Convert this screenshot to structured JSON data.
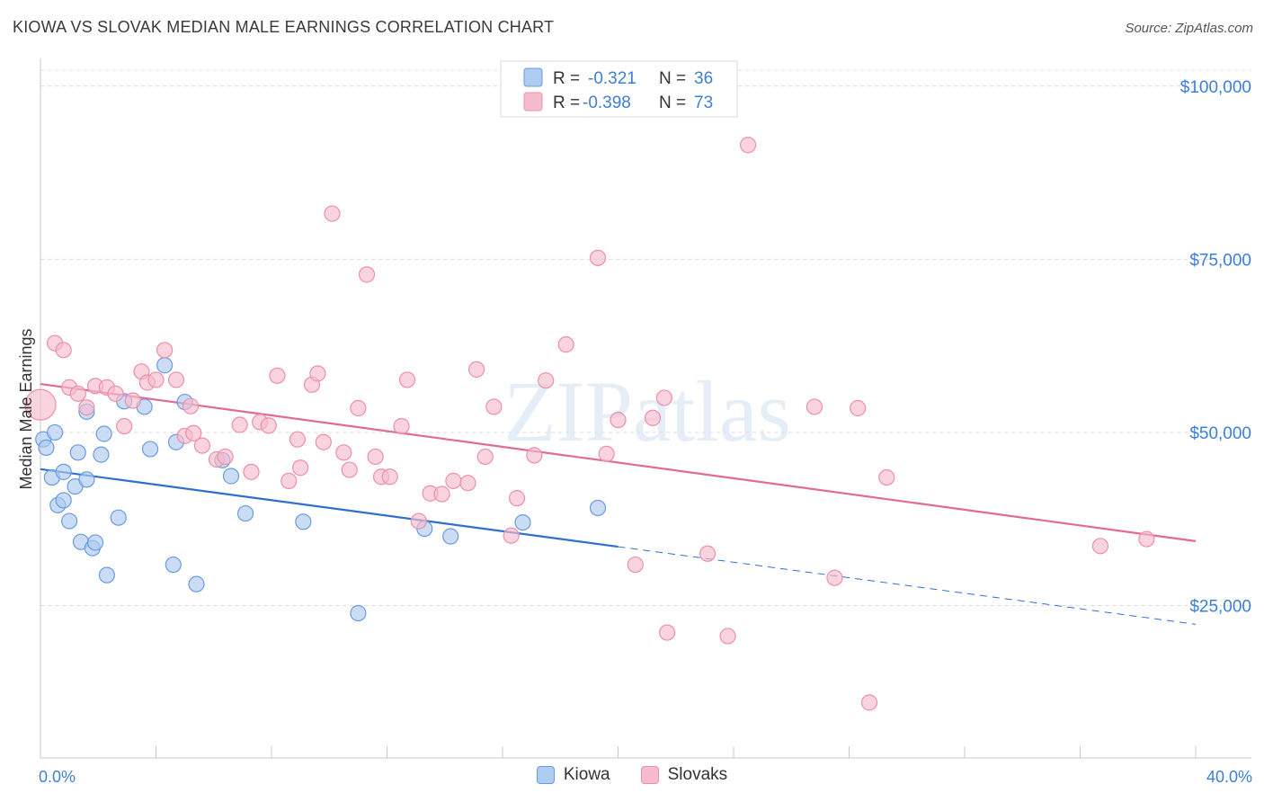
{
  "title": "KIOWA VS SLOVAK MEDIAN MALE EARNINGS CORRELATION CHART",
  "source": "Source: ZipAtlas.com",
  "watermark": "ZIPatlas",
  "colors": {
    "kiowa_fill": "#aecbf0",
    "kiowa_stroke": "#6a9be0",
    "kiowa_line": "#2f6fd0",
    "slovak_fill": "#f6bccd",
    "slovak_stroke": "#ec8fac",
    "slovak_line": "#e36a92",
    "tick_text": "#3d7fd6"
  },
  "legend": [
    {
      "r_label": "R =",
      "r": "-0.321",
      "n_label": "N =",
      "n": "36"
    },
    {
      "r_label": "R =",
      "r": "-0.398",
      "n_label": "N =",
      "n": "73"
    }
  ],
  "chart_data": {
    "type": "scatter",
    "xlabel": "",
    "ylabel": "Median Male Earnings",
    "xlim": [
      0,
      40
    ],
    "ylim": [
      3000,
      104000
    ],
    "x_tick_labels": [
      {
        "value": 0,
        "label": "0.0%"
      },
      {
        "value": 40,
        "label": "40.0%"
      }
    ],
    "x_minor_ticks": [
      0,
      4,
      8,
      12,
      16,
      20,
      24,
      28,
      32,
      36,
      40
    ],
    "y_ticks": [
      {
        "value": 25000,
        "label": "$25,000"
      },
      {
        "value": 50000,
        "label": "$50,000"
      },
      {
        "value": 75000,
        "label": "$75,000"
      },
      {
        "value": 100000,
        "label": "$100,000"
      }
    ],
    "series": [
      {
        "name": "Kiowa",
        "trend": {
          "x0": 0,
          "y0": 44700,
          "x1": 20,
          "y1": 33500,
          "dash_to_x": 40,
          "dash_to_y": 22300
        },
        "points": [
          [
            0.1,
            49000
          ],
          [
            0.2,
            47800
          ],
          [
            0.4,
            43500
          ],
          [
            0.5,
            50000
          ],
          [
            0.6,
            39500
          ],
          [
            0.8,
            44300
          ],
          [
            0.8,
            40200
          ],
          [
            1.0,
            37200
          ],
          [
            1.2,
            42200
          ],
          [
            1.3,
            47100
          ],
          [
            1.4,
            34200
          ],
          [
            1.6,
            53000
          ],
          [
            1.6,
            43200
          ],
          [
            1.8,
            33300
          ],
          [
            1.9,
            34100
          ],
          [
            2.1,
            46800
          ],
          [
            2.2,
            49800
          ],
          [
            2.3,
            29400
          ],
          [
            2.7,
            37700
          ],
          [
            2.9,
            54500
          ],
          [
            3.6,
            53700
          ],
          [
            3.8,
            47600
          ],
          [
            4.3,
            59700
          ],
          [
            4.6,
            30900
          ],
          [
            4.7,
            48600
          ],
          [
            5.0,
            54400
          ],
          [
            5.4,
            28100
          ],
          [
            6.3,
            46000
          ],
          [
            6.6,
            43700
          ],
          [
            7.1,
            38300
          ],
          [
            9.1,
            37100
          ],
          [
            11.0,
            23900
          ],
          [
            13.3,
            36100
          ],
          [
            14.2,
            35000
          ],
          [
            16.7,
            37000
          ],
          [
            19.3,
            39100
          ]
        ]
      },
      {
        "name": "Slovaks",
        "trend": {
          "x0": 0,
          "y0": 57000,
          "x1": 40,
          "y1": 34300
        },
        "points": [
          [
            0.0,
            54000
          ],
          [
            0.5,
            62900
          ],
          [
            0.8,
            61900
          ],
          [
            1.0,
            56500
          ],
          [
            1.3,
            55600
          ],
          [
            1.6,
            53600
          ],
          [
            1.9,
            56700
          ],
          [
            2.3,
            56500
          ],
          [
            2.6,
            55600
          ],
          [
            2.9,
            50900
          ],
          [
            3.2,
            54600
          ],
          [
            3.5,
            58800
          ],
          [
            3.7,
            57200
          ],
          [
            4.0,
            57600
          ],
          [
            4.3,
            61900
          ],
          [
            4.7,
            57600
          ],
          [
            5.2,
            53800
          ],
          [
            5.0,
            49500
          ],
          [
            5.3,
            49900
          ],
          [
            5.6,
            48100
          ],
          [
            6.1,
            46100
          ],
          [
            6.4,
            46500
          ],
          [
            6.9,
            51100
          ],
          [
            7.3,
            44300
          ],
          [
            7.6,
            51500
          ],
          [
            7.9,
            51000
          ],
          [
            8.2,
            58200
          ],
          [
            8.6,
            43000
          ],
          [
            8.9,
            49000
          ],
          [
            9.0,
            44900
          ],
          [
            9.4,
            56900
          ],
          [
            9.6,
            58500
          ],
          [
            9.8,
            48600
          ],
          [
            10.1,
            81600
          ],
          [
            10.5,
            47100
          ],
          [
            10.7,
            44600
          ],
          [
            11.0,
            53500
          ],
          [
            11.3,
            72800
          ],
          [
            11.6,
            46500
          ],
          [
            11.8,
            43600
          ],
          [
            12.1,
            43600
          ],
          [
            12.5,
            50900
          ],
          [
            12.7,
            57600
          ],
          [
            13.1,
            37200
          ],
          [
            13.5,
            41200
          ],
          [
            13.9,
            41100
          ],
          [
            14.3,
            43000
          ],
          [
            14.8,
            42700
          ],
          [
            15.1,
            59100
          ],
          [
            15.4,
            46500
          ],
          [
            15.7,
            53700
          ],
          [
            16.3,
            35100
          ],
          [
            16.5,
            40500
          ],
          [
            17.1,
            46700
          ],
          [
            17.5,
            57500
          ],
          [
            18.2,
            62700
          ],
          [
            19.3,
            75200
          ],
          [
            19.6,
            46900
          ],
          [
            20.0,
            51800
          ],
          [
            20.6,
            30900
          ],
          [
            21.2,
            52100
          ],
          [
            21.6,
            55000
          ],
          [
            21.7,
            21100
          ],
          [
            23.1,
            32500
          ],
          [
            23.8,
            20600
          ],
          [
            24.5,
            91500
          ],
          [
            26.8,
            53700
          ],
          [
            27.5,
            29000
          ],
          [
            28.3,
            53500
          ],
          [
            28.7,
            11000
          ],
          [
            29.3,
            43500
          ],
          [
            36.7,
            33600
          ],
          [
            38.3,
            34600
          ]
        ]
      }
    ]
  }
}
